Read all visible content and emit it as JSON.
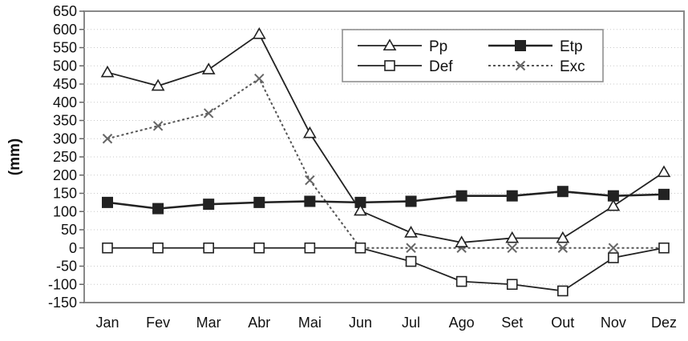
{
  "chart_data": {
    "type": "line",
    "categories": [
      "Jan",
      "Fev",
      "Mar",
      "Abr",
      "Mai",
      "Jun",
      "Jul",
      "Ago",
      "Set",
      "Out",
      "Nov",
      "Dez"
    ],
    "ylabel": "(mm)",
    "ylim": [
      -150,
      650
    ],
    "ytick_step": 50,
    "grid": "horizontal-dotted",
    "legend_position": "top-right",
    "series": [
      {
        "name": "Pp",
        "marker": "triangle-open",
        "line": "solid",
        "color": "#222222",
        "values": [
          482,
          445,
          490,
          587,
          315,
          102,
          42,
          15,
          27,
          27,
          115,
          208
        ]
      },
      {
        "name": "Etp",
        "marker": "square-filled",
        "line": "solid-thick",
        "color": "#222222",
        "values": [
          125,
          108,
          120,
          125,
          128,
          125,
          128,
          143,
          143,
          155,
          143,
          147
        ]
      },
      {
        "name": "Def",
        "marker": "square-open",
        "line": "solid",
        "color": "#222222",
        "values": [
          0,
          0,
          0,
          0,
          0,
          0,
          -37,
          -92,
          -100,
          -118,
          -27,
          0
        ]
      },
      {
        "name": "Exc",
        "marker": "x",
        "line": "dotted",
        "color": "#555555",
        "values": [
          300,
          335,
          370,
          465,
          186,
          0,
          0,
          0,
          0,
          0,
          0,
          0
        ]
      }
    ]
  }
}
